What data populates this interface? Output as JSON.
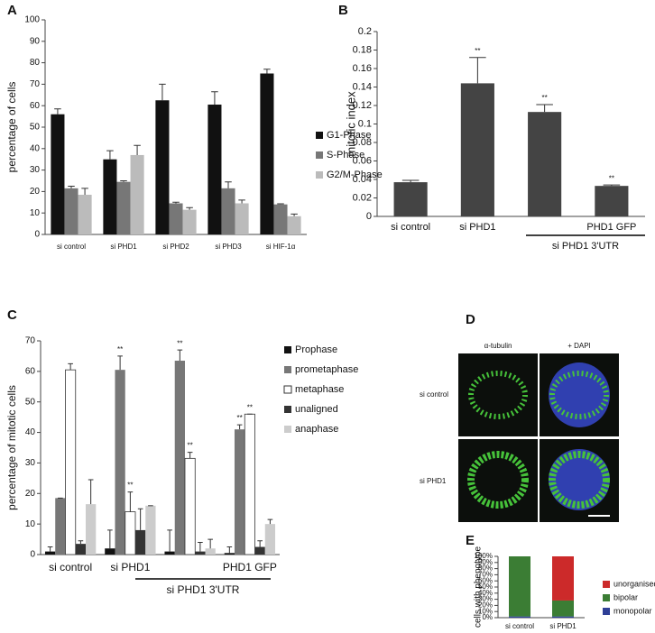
{
  "chart_data": [
    {
      "panel": "A",
      "type": "bar",
      "mode": "grouped",
      "y_label": "percentage of cells",
      "categories": [
        "si control",
        "si PHD1",
        "si PHD2",
        "si PHD3",
        "si HIF-1α"
      ],
      "series": [
        {
          "name": "G1-Phase",
          "color": "#111111",
          "values": [
            56,
            35,
            62.5,
            60.5,
            75
          ],
          "errors": [
            2.5,
            4,
            7.5,
            6,
            2
          ]
        },
        {
          "name": "S-Phase",
          "color": "#777777",
          "values": [
            21.5,
            24.5,
            14.5,
            21.5,
            14
          ],
          "errors": [
            1,
            0.5,
            0.5,
            3,
            0.3
          ]
        },
        {
          "name": "G2/M-Phase",
          "color": "#bbbbbb",
          "values": [
            18.5,
            37,
            11.5,
            14.5,
            8.5
          ],
          "errors": [
            3,
            4.5,
            1,
            1.5,
            1
          ]
        }
      ],
      "ylim": [
        0,
        100
      ],
      "yticks": [
        0,
        10,
        20,
        30,
        40,
        50,
        60,
        70,
        80,
        90,
        100
      ]
    },
    {
      "panel": "B",
      "type": "bar",
      "mode": "grouped",
      "y_label": "mitotic index",
      "categories": [
        "si control",
        "si PHD1",
        null,
        "PHD1 GFP"
      ],
      "group_label": "si PHD1 3'UTR",
      "series": [
        {
          "color": "#444444",
          "values": [
            0.037,
            0.144,
            0.113,
            0.033
          ],
          "errors": [
            0.002,
            0.028,
            0.008,
            0.001
          ],
          "significance": [
            null,
            "**",
            "**",
            "**"
          ]
        }
      ],
      "ylim": [
        0,
        0.2
      ],
      "yticks": [
        0,
        0.02,
        0.04,
        0.06,
        0.08,
        0.1,
        0.12,
        0.14,
        0.16,
        0.18,
        0.2
      ]
    },
    {
      "panel": "C",
      "type": "bar",
      "mode": "grouped",
      "y_label": "percentage of mitotic cells",
      "categories": [
        "si control",
        "si PHD1",
        null,
        "PHD1 GFP"
      ],
      "group_label": "si PHD1 3'UTR",
      "series": [
        {
          "name": "Prophase",
          "color": "#111111",
          "values": [
            1,
            2,
            1,
            0.5
          ],
          "errors": [
            1.5,
            6,
            7,
            2
          ]
        },
        {
          "name": "prometaphase",
          "color": "#777777",
          "values": [
            18.5,
            60.5,
            63.5,
            41
          ],
          "errors": [
            0,
            4.5,
            3.5,
            1.5
          ],
          "significance": [
            null,
            "**",
            "**",
            "**"
          ]
        },
        {
          "name": "metaphase",
          "color": "#ffffff",
          "values": [
            60.5,
            14,
            31.5,
            46
          ],
          "errors": [
            2,
            6.5,
            2,
            0
          ],
          "significance": [
            null,
            "**",
            "**",
            "**"
          ]
        },
        {
          "name": "unaligned",
          "color": "#333333",
          "values": [
            3.5,
            8,
            1,
            2.5
          ],
          "errors": [
            1,
            7,
            3,
            2
          ]
        },
        {
          "name": "anaphase",
          "color": "#cccccc",
          "values": [
            16.5,
            16,
            2,
            10
          ],
          "errors": [
            8,
            0,
            3,
            1.5
          ]
        }
      ],
      "ylim": [
        0,
        70
      ],
      "yticks": [
        0,
        10,
        20,
        30,
        40,
        50,
        60,
        70
      ]
    },
    {
      "panel": "E",
      "type": "bar",
      "mode": "stacked",
      "y_label": "cells with phenotype",
      "categories": [
        "si control",
        "si PHD1"
      ],
      "series": [
        {
          "name": "monopolar",
          "color": "#2e3f96",
          "values": [
            2,
            2
          ]
        },
        {
          "name": "bipolar",
          "color": "#3b7d34",
          "values": [
            98,
            26
          ]
        },
        {
          "name": "unorganised",
          "color": "#cc2a2a",
          "values": [
            0,
            72
          ]
        }
      ],
      "ylim": [
        0,
        100
      ],
      "yticks": [
        {
          "value": 0,
          "label": "0%"
        },
        {
          "value": 10,
          "label": "10%"
        },
        {
          "value": 20,
          "label": "20%"
        },
        {
          "value": 30,
          "label": "30%"
        },
        {
          "value": 40,
          "label": "40%"
        },
        {
          "value": 50,
          "label": "50%"
        },
        {
          "value": 60,
          "label": "60%"
        },
        {
          "value": 70,
          "label": "70%"
        },
        {
          "value": 80,
          "label": "80%"
        },
        {
          "value": 90,
          "label": "90%"
        },
        {
          "value": 100,
          "label": "100%"
        }
      ]
    }
  ],
  "microscopy": {
    "panel": "D",
    "columns": [
      "α-tubulin",
      "+ DAPI"
    ],
    "rows": [
      "si control",
      "si PHD1"
    ]
  }
}
